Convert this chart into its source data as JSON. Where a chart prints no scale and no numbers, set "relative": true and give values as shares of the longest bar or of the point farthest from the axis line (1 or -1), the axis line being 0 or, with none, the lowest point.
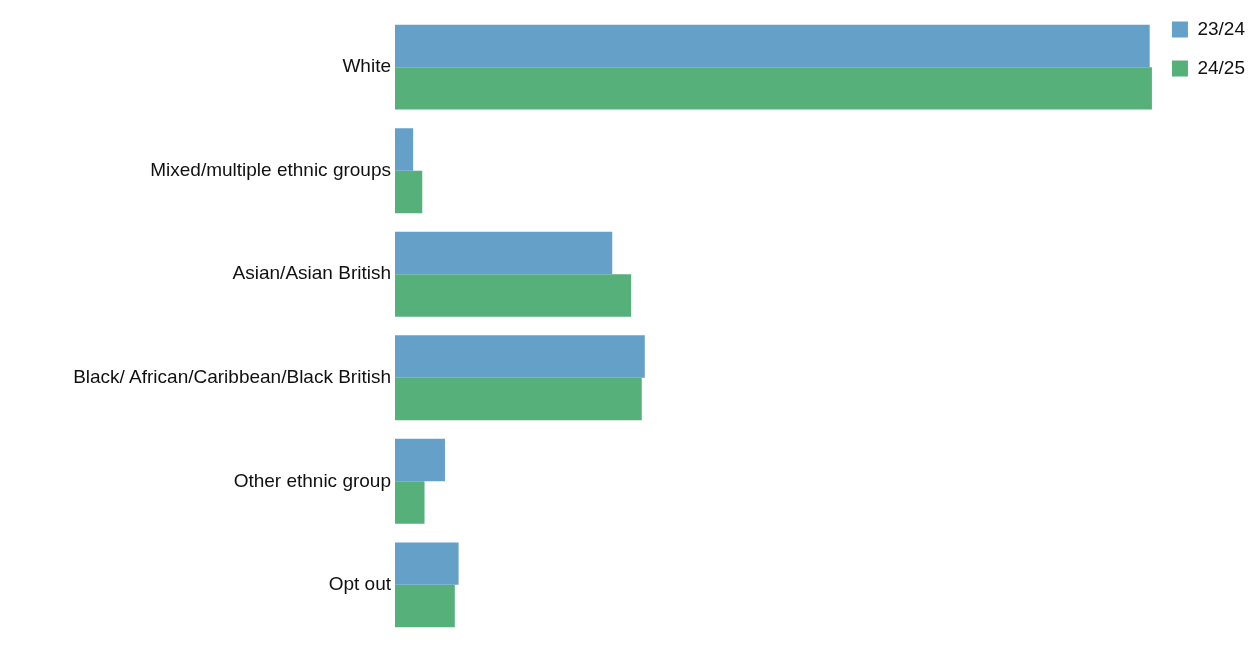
{
  "chart_data": {
    "type": "bar",
    "orientation": "horizontal",
    "relative": true,
    "legend": "top right",
    "grid": false,
    "categories": [
      "White",
      "Mixed/multiple ethnic groups",
      "Asian/Asian British",
      "Black/ African/Caribbean/Black British",
      "Other ethnic group",
      "Opt out"
    ],
    "series": [
      {
        "name": "23/24",
        "color": "#64a0c8",
        "values": [
          0.997,
          0.024,
          0.287,
          0.33,
          0.066,
          0.084
        ]
      },
      {
        "name": "24/25",
        "color": "#55b07a",
        "values": [
          1,
          0.036,
          0.312,
          0.326,
          0.039,
          0.079
        ]
      }
    ]
  }
}
